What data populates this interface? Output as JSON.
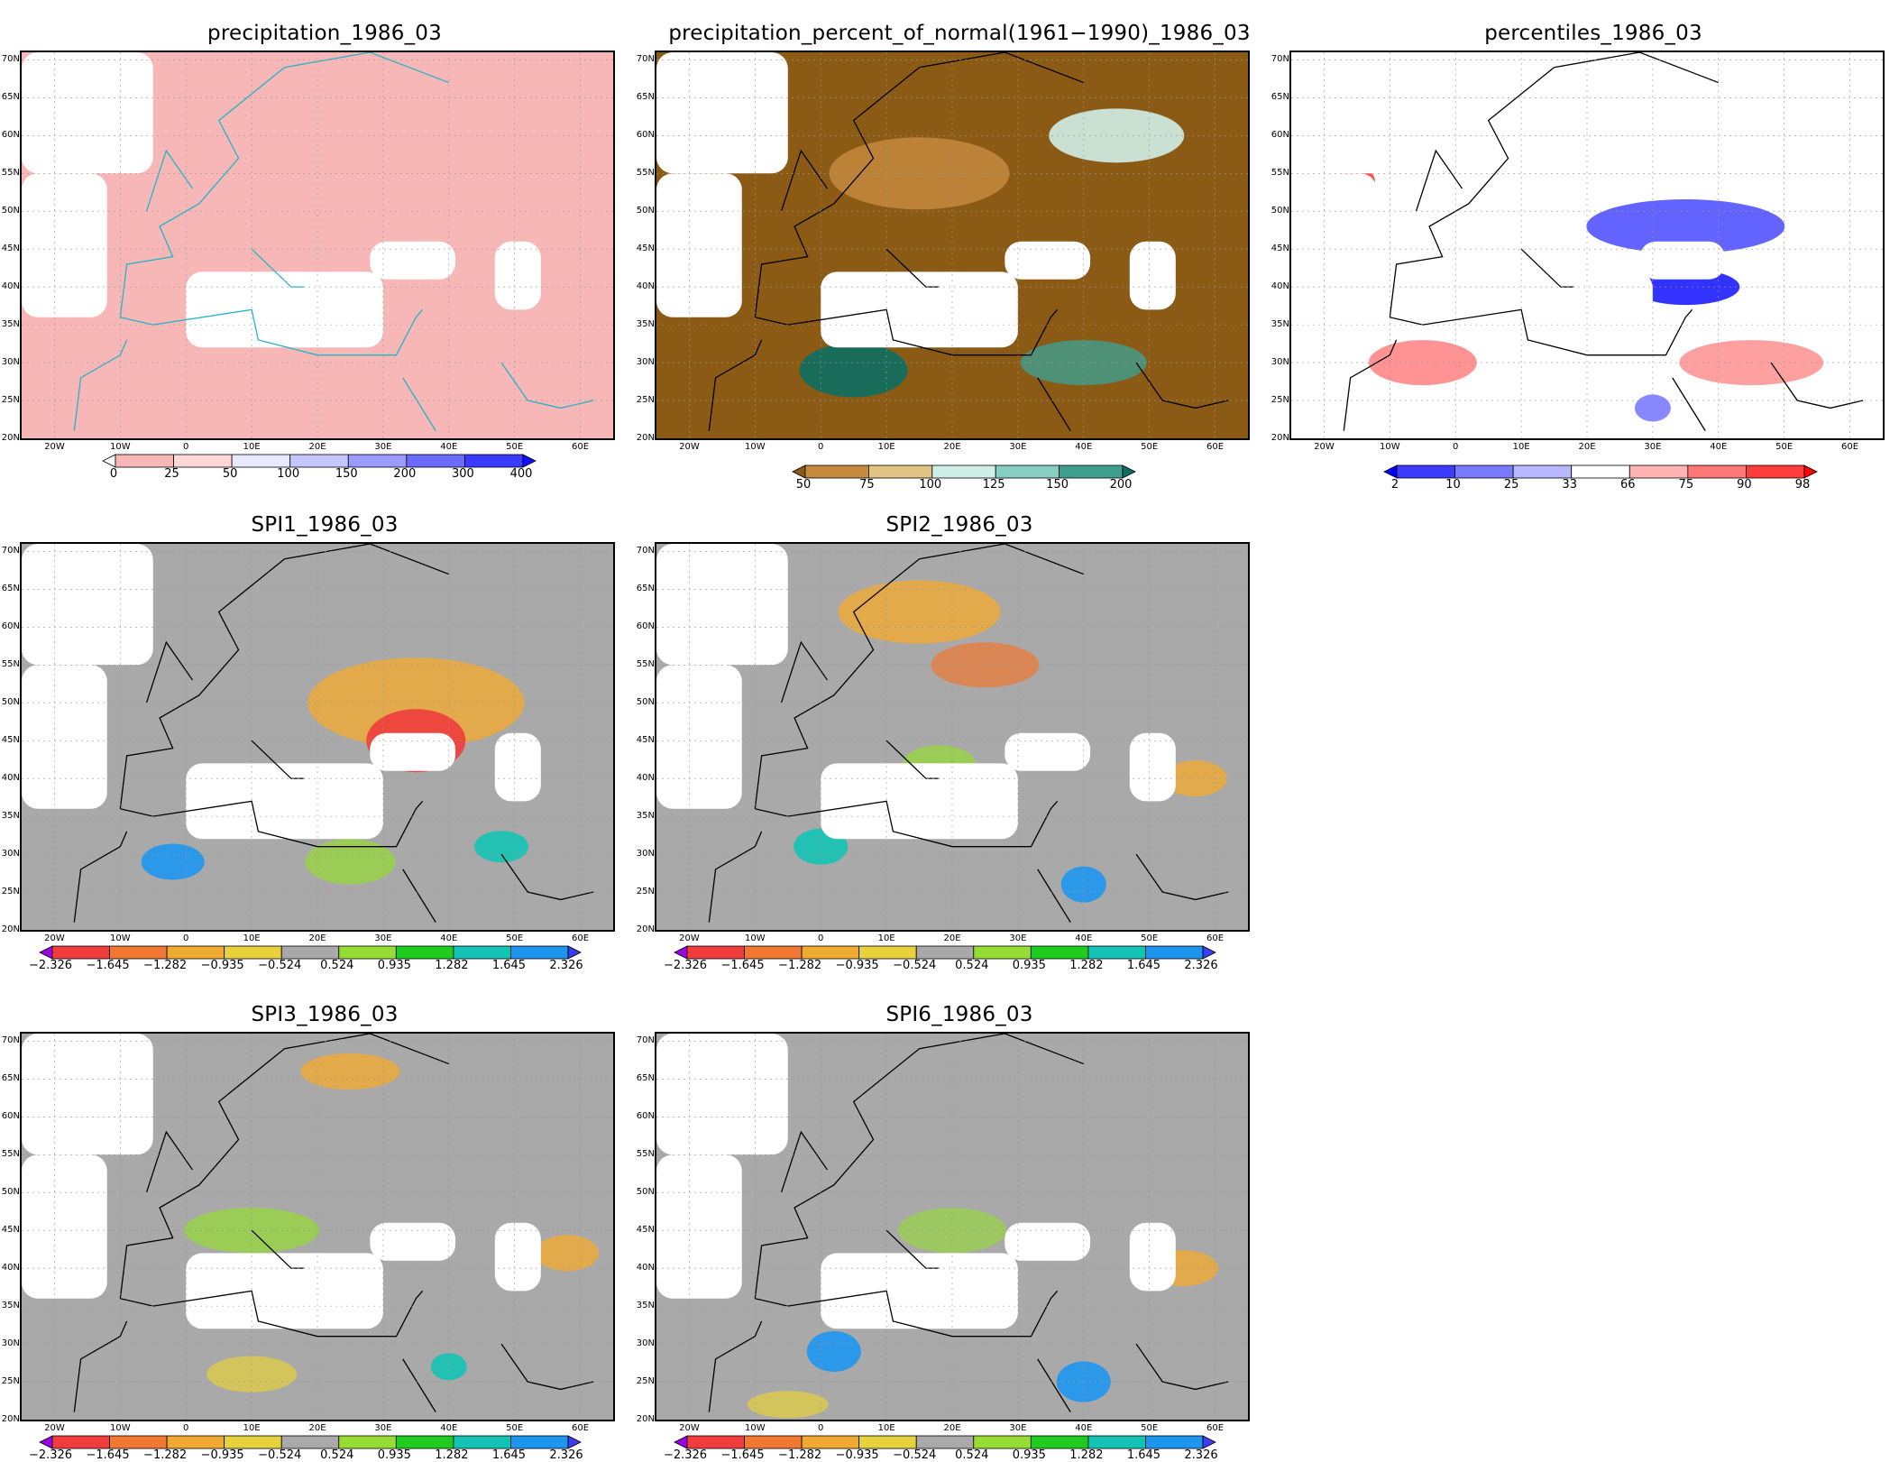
{
  "panels": [
    {
      "title": "precipitation_1986_03",
      "type": "precip"
    },
    {
      "title": "precipitation_percent_of_normal(1961−1990)_1986_03",
      "type": "pct"
    },
    {
      "title": "percentiles_1986_03",
      "type": "perc"
    },
    {
      "title": "SPI1_1986_03",
      "type": "spi1"
    },
    {
      "title": "SPI2_1986_03",
      "type": "spi2"
    },
    {
      "title": "SPI3_1986_03",
      "type": "spi3"
    },
    {
      "title": "SPI6_1986_03",
      "type": "spi6"
    }
  ],
  "axes": {
    "lat_labels": [
      "70N",
      "65N",
      "60N",
      "55N",
      "50N",
      "45N",
      "40N",
      "35N",
      "30N",
      "25N",
      "20N"
    ],
    "lon_labels": [
      "20W",
      "10W",
      "0",
      "10E",
      "20E",
      "30E",
      "40E",
      "50E",
      "60E"
    ]
  },
  "colorbars": {
    "precip": {
      "labels": [
        "0",
        "25",
        "50",
        "100",
        "150",
        "200",
        "300",
        "400"
      ],
      "colors": [
        "#ffffff",
        "#f7b7b7",
        "#ffd7d7",
        "#e8e8ff",
        "#c6c6ff",
        "#9a9aff",
        "#6b6bff",
        "#3b3bff",
        "#1010ff"
      ]
    },
    "pct": {
      "labels": [
        "50",
        "75",
        "100",
        "125",
        "150",
        "200"
      ],
      "colors": [
        "#8b5a14",
        "#c48a3e",
        "#e2c584",
        "#cfeee8",
        "#86cfc2",
        "#3f9f8f",
        "#0c6e62"
      ]
    },
    "perc": {
      "labels": [
        "2",
        "10",
        "25",
        "33",
        "66",
        "75",
        "90",
        "98"
      ],
      "colors": [
        "#0000ff",
        "#3c3cff",
        "#7a7aff",
        "#b8b8ff",
        "#ffffff",
        "#ffb4b4",
        "#ff7878",
        "#ff3c3c",
        "#ff0000"
      ]
    },
    "spi": {
      "labels": [
        "−2.326",
        "−1.645",
        "−1.282",
        "−0.935",
        "−0.524",
        "0.524",
        "0.935",
        "1.282",
        "1.645",
        "2.326"
      ],
      "colors": [
        "#9b00e8",
        "#f03c3c",
        "#f07832",
        "#f0aa32",
        "#e6d23c",
        "#a9a9a9",
        "#96dc32",
        "#1ecb1e",
        "#14c3b4",
        "#1e96f0",
        "#3c3cf0"
      ]
    }
  }
}
